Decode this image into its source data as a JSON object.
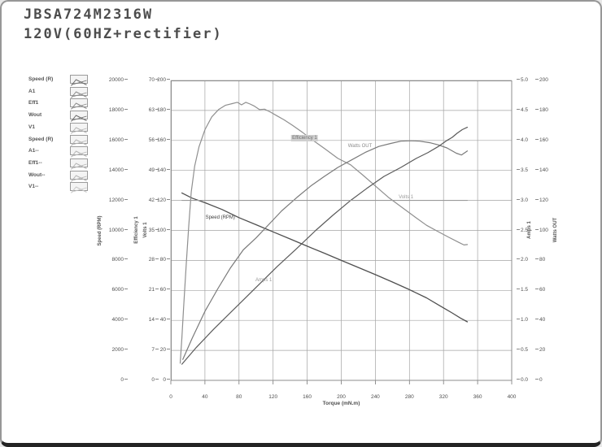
{
  "header": {
    "model": "JBSA724M2316W",
    "spec": "120V(60HZ+rectifier)"
  },
  "legend": {
    "items": [
      {
        "label": "Speed (R)",
        "color": "#6b6b6b"
      },
      {
        "label": "A1",
        "color": "#8a8a8a"
      },
      {
        "label": "Eff1",
        "color": "#8a8a8a"
      },
      {
        "label": "Wout",
        "color": "#6b6b6b"
      },
      {
        "label": "V1",
        "color": "#b4b4b4"
      },
      {
        "label": "Speed (R)",
        "color": "#b4b4b4"
      },
      {
        "label": "A1--",
        "color": "#b4b4b4"
      },
      {
        "label": "Eff1--",
        "color": "#b4b4b4"
      },
      {
        "label": "Wout--",
        "color": "#b4b4b4"
      },
      {
        "label": "V1--",
        "color": "#c6c6c6"
      }
    ]
  },
  "chart_data": {
    "type": "line",
    "xlabel": "Torque (mN.m)",
    "x_min": 0,
    "x_max": 400,
    "x_ticks": [
      "0",
      "40",
      "80",
      "120",
      "160",
      "200",
      "240",
      "280",
      "320",
      "360",
      "400"
    ],
    "grid": true,
    "grid_color": "#a3a3a3",
    "frame_color": "#8c8c8c",
    "axes": {
      "speed": {
        "title": "Speed (RPM)",
        "min": 0,
        "max": 20000,
        "side": "left",
        "ticks": [
          "20000",
          "18000",
          "16000",
          "14000",
          "12000",
          "10000",
          "8000",
          "6000",
          "4000",
          "2000",
          "0"
        ]
      },
      "efficiency": {
        "title": "Efficiency 1",
        "min": 0,
        "max": 70,
        "side": "left",
        "ticks": [
          "70",
          "63",
          "56",
          "49",
          "42",
          "35",
          "28",
          "21",
          "14",
          "7",
          "0"
        ]
      },
      "volts": {
        "title": "Volts 1",
        "min": 0,
        "max": 200,
        "side": "left",
        "ticks": [
          "200",
          "180",
          "160",
          "140",
          "120",
          "100",
          "80",
          "60",
          "40",
          "20",
          "0"
        ]
      },
      "amps": {
        "title": "Amps 1",
        "min": 0,
        "max": 5,
        "side": "right",
        "ticks": [
          "5.0",
          "4.5",
          "4.0",
          "3.5",
          "3.0",
          "2.5",
          "2.0",
          "1.5",
          "1.0",
          "0.5",
          "0.0"
        ]
      },
      "watts": {
        "title": "Watts OUT",
        "min": 0,
        "max": 200,
        "side": "right",
        "ticks": [
          "200",
          "180",
          "160",
          "140",
          "120",
          "100",
          "80",
          "60",
          "40",
          "20",
          "0"
        ]
      }
    },
    "series": [
      {
        "name": "Speed (RPM)",
        "axis": "speed",
        "color": "#4f4f4f",
        "width": 1.3,
        "points": [
          [
            13,
            12500
          ],
          [
            25,
            12150
          ],
          [
            40,
            11850
          ],
          [
            60,
            11400
          ],
          [
            80,
            10850
          ],
          [
            100,
            10380
          ],
          [
            120,
            9900
          ],
          [
            140,
            9430
          ],
          [
            160,
            8950
          ],
          [
            180,
            8480
          ],
          [
            200,
            8000
          ],
          [
            220,
            7530
          ],
          [
            240,
            7050
          ],
          [
            260,
            6560
          ],
          [
            280,
            6050
          ],
          [
            300,
            5500
          ],
          [
            315,
            5000
          ],
          [
            330,
            4500
          ],
          [
            340,
            4150
          ],
          [
            348,
            3900
          ]
        ]
      },
      {
        "name": "Efficiency 1",
        "axis": "efficiency",
        "color": "#8f8f8f",
        "width": 1.2,
        "points": [
          [
            11,
            4
          ],
          [
            13,
            10
          ],
          [
            15,
            17
          ],
          [
            18,
            27
          ],
          [
            21,
            36
          ],
          [
            24,
            44
          ],
          [
            28,
            50
          ],
          [
            33,
            54.5
          ],
          [
            40,
            58.5
          ],
          [
            48,
            61.5
          ],
          [
            56,
            63.2
          ],
          [
            64,
            64.2
          ],
          [
            72,
            64.6
          ],
          [
            78,
            64.9
          ],
          [
            83,
            64.3
          ],
          [
            88,
            64.9
          ],
          [
            93,
            64.5
          ],
          [
            98,
            64.0
          ],
          [
            104,
            63.2
          ],
          [
            110,
            63.3
          ],
          [
            117,
            62.6
          ],
          [
            124,
            61.8
          ],
          [
            133,
            60.8
          ],
          [
            143,
            59.5
          ],
          [
            155,
            57.8
          ],
          [
            167,
            56.0
          ],
          [
            181,
            54.0
          ],
          [
            196,
            51.8
          ],
          [
            211,
            50.3
          ],
          [
            226,
            47.8
          ],
          [
            241,
            45.2
          ],
          [
            256,
            42.6
          ],
          [
            271,
            40.4
          ],
          [
            286,
            38.2
          ],
          [
            300,
            36.2
          ],
          [
            313,
            34.8
          ],
          [
            326,
            33.4
          ],
          [
            338,
            32.2
          ],
          [
            344,
            31.6
          ],
          [
            348,
            31.7
          ]
        ]
      },
      {
        "name": "Watts OUT",
        "axis": "watts",
        "color": "#7a7a7a",
        "width": 1.2,
        "points": [
          [
            14,
            14
          ],
          [
            25,
            28
          ],
          [
            40,
            46
          ],
          [
            55,
            61
          ],
          [
            70,
            75
          ],
          [
            85,
            87
          ],
          [
            100,
            95
          ],
          [
            115,
            104
          ],
          [
            130,
            113
          ],
          [
            148,
            122
          ],
          [
            165,
            130
          ],
          [
            180,
            136
          ],
          [
            196,
            142
          ],
          [
            212,
            147
          ],
          [
            228,
            152
          ],
          [
            244,
            156
          ],
          [
            258,
            158
          ],
          [
            270,
            159.5
          ],
          [
            282,
            159.8
          ],
          [
            292,
            159.5
          ],
          [
            304,
            158.5
          ],
          [
            314,
            157
          ],
          [
            324,
            155
          ],
          [
            335,
            151.5
          ],
          [
            341,
            150.3
          ],
          [
            348,
            153
          ]
        ]
      },
      {
        "name": "Amps 1",
        "axis": "amps",
        "color": "#5a5a5a",
        "width": 1.2,
        "points": [
          [
            13,
            0.27
          ],
          [
            30,
            0.55
          ],
          [
            50,
            0.85
          ],
          [
            75,
            1.2
          ],
          [
            100,
            1.55
          ],
          [
            125,
            1.9
          ],
          [
            148,
            2.2
          ],
          [
            170,
            2.5
          ],
          [
            190,
            2.75
          ],
          [
            211,
            3.0
          ],
          [
            230,
            3.2
          ],
          [
            250,
            3.4
          ],
          [
            270,
            3.55
          ],
          [
            288,
            3.7
          ],
          [
            302,
            3.8
          ],
          [
            314,
            3.9
          ],
          [
            324,
            4.0
          ],
          [
            330,
            4.05
          ],
          [
            336,
            4.12
          ],
          [
            342,
            4.18
          ],
          [
            348,
            4.22
          ]
        ]
      },
      {
        "name": "Volts 1",
        "axis": "volts",
        "color": "#9a9a9a",
        "width": 1.1,
        "points": [
          [
            13,
            120
          ],
          [
            348,
            120
          ]
        ]
      }
    ],
    "annotations": [
      {
        "text": "Speed (RPM)",
        "t": 58,
        "axis": "speed",
        "v": 10850,
        "color": "#3f3f3f",
        "boxed": false
      },
      {
        "text": "Efficiency 1",
        "t": 157,
        "axis": "efficiency",
        "v": 56.5,
        "color": "#6f6f6f",
        "boxed": true
      },
      {
        "text": "Watts OUT",
        "t": 222,
        "axis": "watts",
        "v": 156,
        "color": "#8a8a8a",
        "boxed": false
      },
      {
        "text": "Volts 1",
        "t": 276,
        "axis": "volts",
        "v": 122,
        "color": "#9a9a9a",
        "boxed": false
      },
      {
        "text": "Amps 1",
        "t": 109,
        "axis": "amps",
        "v": 1.67,
        "color": "#9a9a9a",
        "boxed": false
      }
    ]
  }
}
